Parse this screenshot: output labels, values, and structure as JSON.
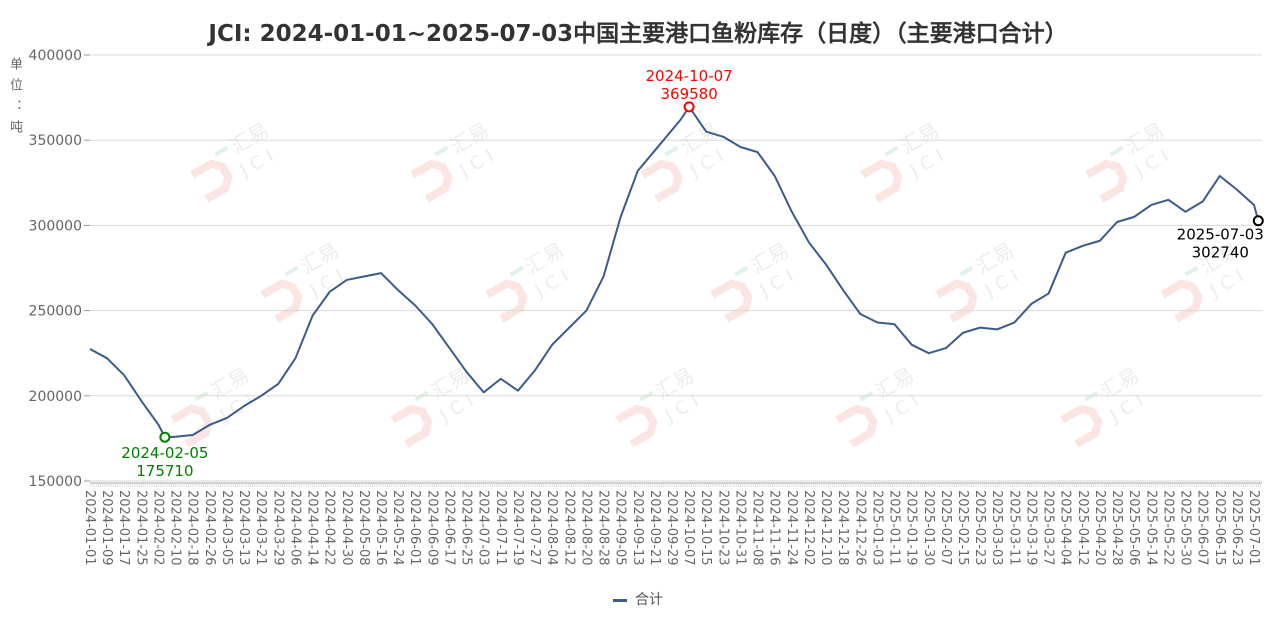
{
  "chart_data": {
    "type": "line",
    "title": "JCI: 2024-01-01~2025-07-03中国主要港口鱼粉库存（日度）（主要港口合计）",
    "ylabel": "单位：吨",
    "ylim": [
      150000,
      400000
    ],
    "yticks": [
      "400000",
      "350000",
      "300000",
      "250000",
      "200000",
      "150000"
    ],
    "grid": true,
    "legend_position": "bottom",
    "xticks": [
      "2024-01-01",
      "2024-01-09",
      "2024-01-17",
      "2024-01-25",
      "2024-02-02",
      "2024-02-10",
      "2024-02-18",
      "2024-02-26",
      "2024-03-05",
      "2024-03-13",
      "2024-03-21",
      "2024-03-29",
      "2024-04-06",
      "2024-04-14",
      "2024-04-22",
      "2024-04-30",
      "2024-05-08",
      "2024-05-16",
      "2024-05-24",
      "2024-06-01",
      "2024-06-09",
      "2024-06-17",
      "2024-06-25",
      "2024-07-03",
      "2024-07-11",
      "2024-07-19",
      "2024-07-27",
      "2024-08-04",
      "2024-08-12",
      "2024-08-20",
      "2024-08-28",
      "2024-09-05",
      "2024-09-13",
      "2024-09-21",
      "2024-09-29",
      "2024-10-07",
      "2024-10-15",
      "2024-10-23",
      "2024-10-31",
      "2024-11-08",
      "2024-11-16",
      "2024-11-24",
      "2024-12-02",
      "2024-12-10",
      "2024-12-18",
      "2024-12-26",
      "2025-01-03",
      "2025-01-11",
      "2025-01-19",
      "2025-01-30",
      "2025-02-07",
      "2025-02-15",
      "2025-02-23",
      "2025-03-03",
      "2025-03-11",
      "2025-03-19",
      "2025-03-27",
      "2025-04-04",
      "2025-04-12",
      "2025-04-20",
      "2025-04-28",
      "2025-05-06",
      "2025-05-14",
      "2025-05-22",
      "2025-05-30",
      "2025-06-07",
      "2025-06-15",
      "2025-06-23",
      "2025-07-01"
    ],
    "series": [
      {
        "name": "合计",
        "color": "#3b5b8c",
        "x": [
          "2024-01-01",
          "2024-01-09",
          "2024-01-17",
          "2024-01-25",
          "2024-02-02",
          "2024-02-05",
          "2024-02-10",
          "2024-02-18",
          "2024-02-26",
          "2024-03-05",
          "2024-03-13",
          "2024-03-21",
          "2024-03-29",
          "2024-04-06",
          "2024-04-14",
          "2024-04-22",
          "2024-04-30",
          "2024-05-08",
          "2024-05-16",
          "2024-05-24",
          "2024-06-01",
          "2024-06-09",
          "2024-06-17",
          "2024-06-25",
          "2024-07-03",
          "2024-07-11",
          "2024-07-19",
          "2024-07-27",
          "2024-08-04",
          "2024-08-12",
          "2024-08-20",
          "2024-08-28",
          "2024-09-05",
          "2024-09-13",
          "2024-09-21",
          "2024-09-29",
          "2024-10-03",
          "2024-10-07",
          "2024-10-15",
          "2024-10-23",
          "2024-10-31",
          "2024-11-08",
          "2024-11-16",
          "2024-11-24",
          "2024-12-02",
          "2024-12-10",
          "2024-12-18",
          "2024-12-26",
          "2025-01-03",
          "2025-01-11",
          "2025-01-19",
          "2025-01-30",
          "2025-02-07",
          "2025-02-15",
          "2025-02-23",
          "2025-03-03",
          "2025-03-11",
          "2025-03-19",
          "2025-03-27",
          "2025-04-04",
          "2025-04-12",
          "2025-04-20",
          "2025-04-28",
          "2025-05-06",
          "2025-05-14",
          "2025-05-22",
          "2025-05-30",
          "2025-06-07",
          "2025-06-15",
          "2025-06-23",
          "2025-07-01",
          "2025-07-03"
        ],
        "values": [
          227500,
          222000,
          212000,
          197000,
          183000,
          175710,
          176000,
          177000,
          183000,
          187000,
          194000,
          200000,
          207000,
          222000,
          247000,
          261000,
          268000,
          270000,
          272000,
          262000,
          253000,
          242000,
          228000,
          214000,
          202000,
          210000,
          203000,
          215000,
          230000,
          240000,
          250000,
          270000,
          305000,
          332000,
          344000,
          356000,
          362000,
          369580,
          355000,
          352000,
          346000,
          343000,
          329000,
          308000,
          290000,
          277000,
          262000,
          248000,
          243000,
          242000,
          230000,
          225000,
          228000,
          237000,
          240000,
          239000,
          243000,
          254000,
          260000,
          284000,
          288000,
          291000,
          302000,
          305000,
          312000,
          315000,
          308000,
          314000,
          329000,
          321000,
          312000,
          302740
        ]
      }
    ],
    "annotations": [
      {
        "kind": "min",
        "date": "2024-02-05",
        "value": "175710",
        "color": "#008000"
      },
      {
        "kind": "max",
        "date": "2024-10-07",
        "value": "369580",
        "color": "#ff0000"
      },
      {
        "kind": "last",
        "date": "2025-07-03",
        "value": "302740",
        "color": "#000000"
      }
    ]
  },
  "watermark_text": "汇易 JCI"
}
